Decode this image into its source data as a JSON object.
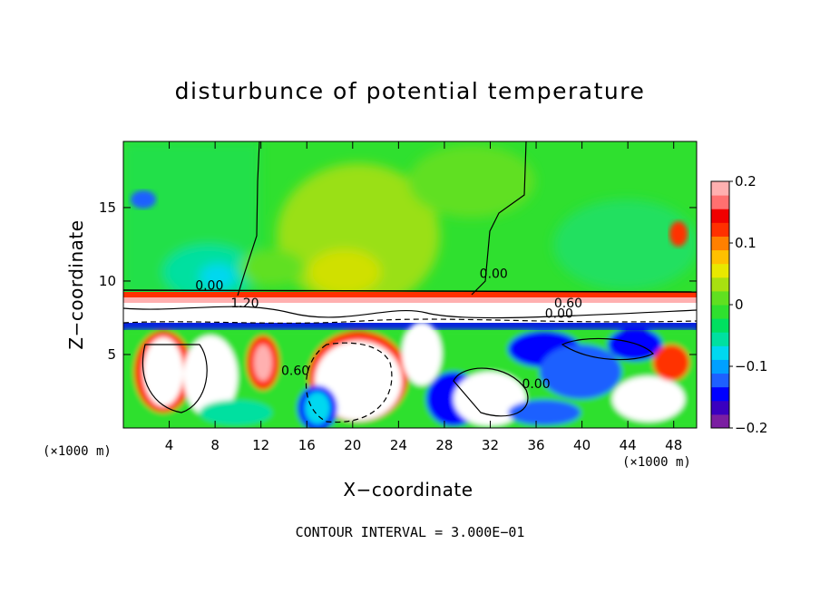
{
  "chart_data": {
    "type": "heatmap",
    "title": "disturbunce of potential temperature",
    "xlabel": "X−coordinate",
    "ylabel": "Z−coordinate",
    "x_unit": "(×1000 m)",
    "z_unit": "(×1000 m)",
    "x_ticks": [
      4,
      8,
      12,
      16,
      20,
      24,
      28,
      32,
      36,
      40,
      44,
      48
    ],
    "y_ticks": [
      5,
      10,
      15
    ],
    "xlim": [
      0,
      50
    ],
    "ylim": [
      0,
      19.5
    ],
    "colorbar": {
      "ticks": [
        "0.2",
        "0.1",
        "0",
        "−0.1",
        "−0.2"
      ],
      "tick_values": [
        0.2,
        0.1,
        0,
        -0.1,
        -0.2
      ],
      "range": [
        -0.2,
        0.2
      ],
      "colors": [
        "#7b1fa2",
        "#3a00c0",
        "#0000ff",
        "#1e60ff",
        "#00a0ff",
        "#00d8f0",
        "#00e0a0",
        "#00e060",
        "#2fe02f",
        "#60e020",
        "#a8e010",
        "#e8e800",
        "#ffc000",
        "#ff8000",
        "#ff3000",
        "#f00000",
        "#ff7070",
        "#ffb0b0"
      ]
    },
    "contour_labels": [
      {
        "text": "0.00",
        "x": 7.5,
        "z": 9.4
      },
      {
        "text": "0.00",
        "x": 32.3,
        "z": 10.2
      },
      {
        "text": "0.60",
        "x": 38.8,
        "z": 8.2
      },
      {
        "text": "0.00",
        "x": 38.0,
        "z": 7.5
      },
      {
        "text": "1.20",
        "x": 10.6,
        "z": 8.2
      },
      {
        "text": "0.00",
        "x": 36.0,
        "z": 2.7
      },
      {
        "text": "0.60",
        "x": 15.0,
        "z": 3.6
      }
    ],
    "contour_interval_text": "CONTOUR INTERVAL = 3.000E−01"
  }
}
